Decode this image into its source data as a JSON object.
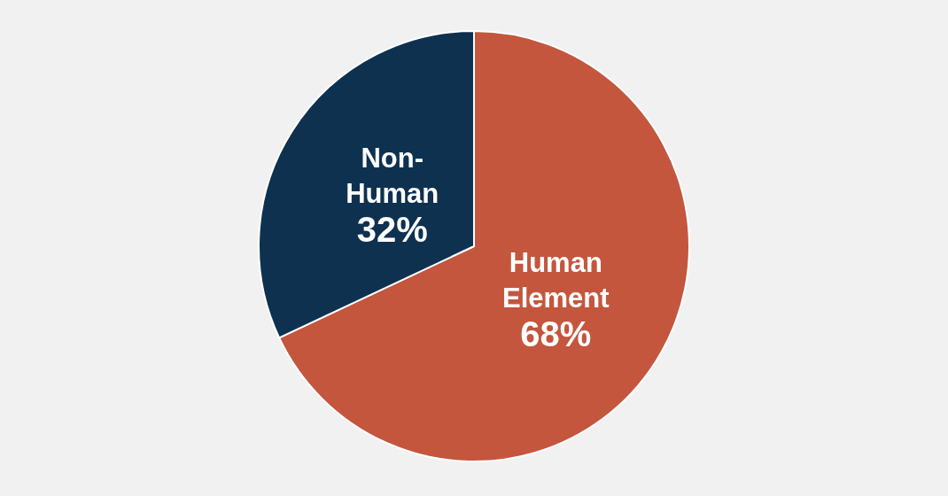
{
  "chart_data": {
    "type": "pie",
    "categories": [
      "Human Element",
      "Non-Human"
    ],
    "values": [
      68,
      32
    ],
    "colors": [
      "#c4563e",
      "#0e3150"
    ],
    "value_labels": [
      "68%",
      "32%"
    ]
  }
}
